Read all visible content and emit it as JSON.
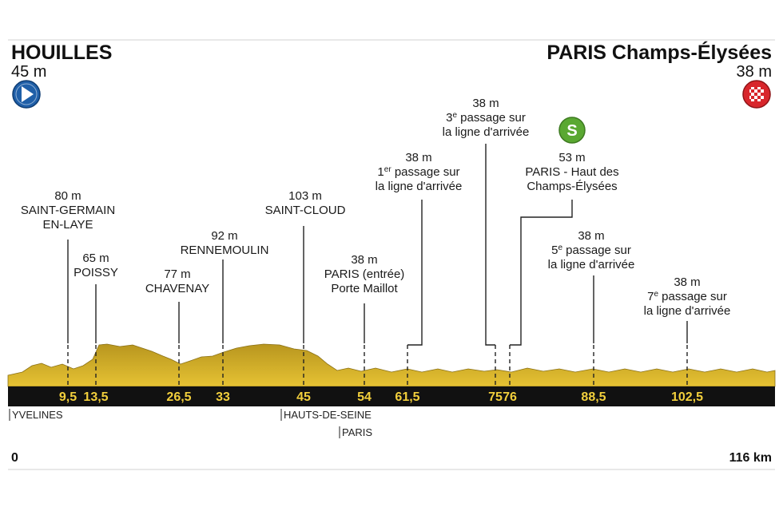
{
  "start": {
    "name": "HOUILLES",
    "altitude": "45 m",
    "icon": "start-arrow-icon",
    "color": "#1f5fa8"
  },
  "finish": {
    "name": "PARIS Champs-Élysées",
    "altitude": "38 m",
    "icon": "checkered-flag-icon",
    "color": "#d8262c"
  },
  "distance": {
    "start_label": "0",
    "end_label": "116 km",
    "total_km": 116
  },
  "colors": {
    "terrain": "#d9b52e",
    "terrain_dark": "#a88a1c",
    "bar": "#111111",
    "km_text": "#f2cf3c",
    "sprint": "#5aa832"
  },
  "sprint": {
    "letter": "S",
    "icon": "sprint-icon",
    "km": 76
  },
  "km_marks": [
    {
      "km": 9.5,
      "label": "9,5"
    },
    {
      "km": 13.5,
      "label": "13,5"
    },
    {
      "km": 26.5,
      "label": "26,5"
    },
    {
      "km": 33,
      "label": "33"
    },
    {
      "km": 45,
      "label": "45"
    },
    {
      "km": 54,
      "label": "54"
    },
    {
      "km": 61.5,
      "label": "61,5"
    },
    {
      "km": 75,
      "label": "75"
    },
    {
      "km": 76,
      "label": "76"
    },
    {
      "km": 88.5,
      "label": "88,5"
    },
    {
      "km": 102.5,
      "label": "102,5"
    }
  ],
  "waypoints": [
    {
      "id": "saint-germain",
      "km": 9.5,
      "lines": [
        "80 m",
        "SAINT-GERMAIN",
        "EN-LAYE"
      ]
    },
    {
      "id": "poissy",
      "km": 13.5,
      "lines": [
        "65 m",
        "POISSY"
      ]
    },
    {
      "id": "chavenay",
      "km": 26.5,
      "lines": [
        "77 m",
        "CHAVENAY"
      ]
    },
    {
      "id": "rennemoulin",
      "km": 33,
      "lines": [
        "92 m",
        "RENNEMOULIN"
      ]
    },
    {
      "id": "saint-cloud",
      "km": 45,
      "lines": [
        "103 m",
        "SAINT-CLOUD"
      ]
    },
    {
      "id": "paris-entree",
      "km": 54,
      "lines": [
        "38 m",
        "PARIS (entrée)",
        "Porte Maillot"
      ]
    },
    {
      "id": "passage-1",
      "km": 61.5,
      "lines": [
        "38 m",
        "1|er| passage sur",
        "la ligne d'arrivée"
      ]
    },
    {
      "id": "passage-3",
      "km": 75,
      "lines": [
        "38 m",
        "3|e| passage sur",
        "la ligne d'arrivée"
      ]
    },
    {
      "id": "haut-champs",
      "km": 76,
      "lines": [
        "53 m",
        "PARIS - Haut des",
        "Champs-Élysées"
      ]
    },
    {
      "id": "passage-5",
      "km": 88.5,
      "lines": [
        "38 m",
        "5|e| passage sur",
        "la ligne d'arrivée"
      ]
    },
    {
      "id": "passage-7",
      "km": 102.5,
      "lines": [
        "38 m",
        "7|e| passage sur",
        "la ligne d'arrivée"
      ]
    }
  ],
  "regions": [
    {
      "km": 0,
      "label": "YVELINES"
    },
    {
      "km": 45,
      "label": "HAUTS-DE-SEINE"
    },
    {
      "km": 54,
      "label": "PARIS"
    }
  ]
}
